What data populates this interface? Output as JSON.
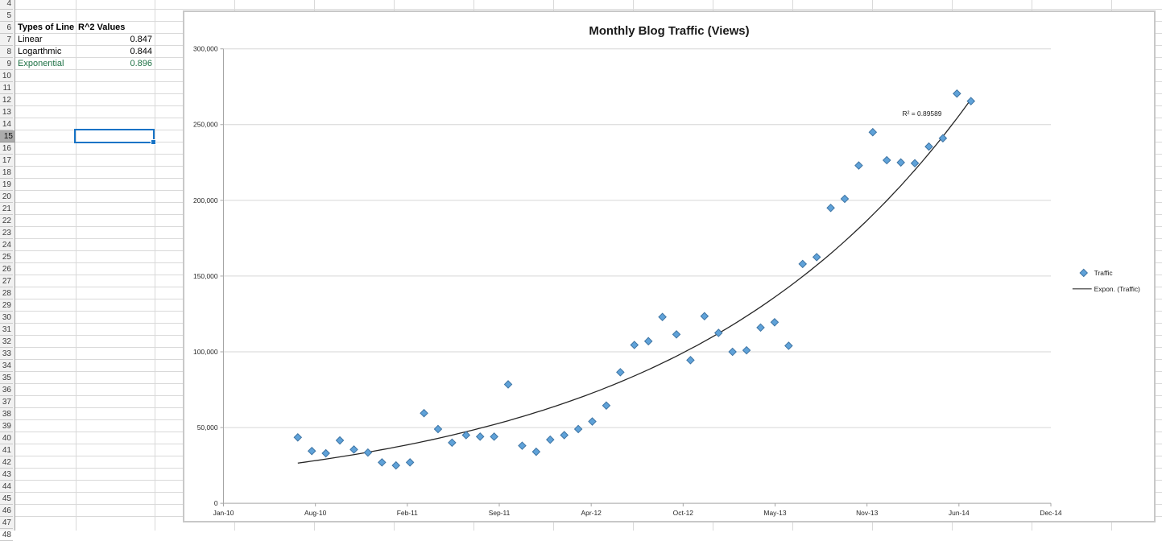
{
  "spreadsheet": {
    "first_visible_row": 4,
    "last_visible_row": 48,
    "selected_row": 15,
    "table": {
      "header": {
        "col1": "Types of Line",
        "col2": "R^2 Values"
      },
      "rows": [
        {
          "label": "Linear",
          "value": "0.847",
          "green": false
        },
        {
          "label": "Logarthmic",
          "value": "0.844",
          "green": false
        },
        {
          "label": "Exponential",
          "value": "0.896",
          "green": true
        }
      ]
    },
    "colors": {
      "green_text": "#1F7246",
      "selection_blue": "#1673C6",
      "row_header_bg": "#F1F1F1",
      "row_header_selected_bg": "#ACACAC",
      "sheet_gridline": "#D9D9D9"
    }
  },
  "chart_data": {
    "type": "scatter",
    "title": "Monthly Blog Traffic (Views)",
    "x": [
      "Jun-10",
      "Jul-10",
      "Aug-10",
      "Sep-10",
      "Oct-10",
      "Nov-10",
      "Dec-10",
      "Jan-11",
      "Feb-11",
      "Mar-11",
      "Apr-11",
      "May-11",
      "Jun-11",
      "Jul-11",
      "Aug-11",
      "Sep-11",
      "Oct-11",
      "Nov-11",
      "Dec-11",
      "Jan-12",
      "Feb-12",
      "Mar-12",
      "Apr-12",
      "May-12",
      "Jun-12",
      "Jul-12",
      "Aug-12",
      "Sep-12",
      "Oct-12",
      "Nov-12",
      "Dec-12",
      "Jan-13",
      "Feb-13",
      "Mar-13",
      "Apr-13",
      "May-13",
      "Jun-13",
      "Jul-13",
      "Aug-13",
      "Sep-13",
      "Oct-13",
      "Nov-13",
      "Dec-13",
      "Jan-14",
      "Feb-14",
      "Mar-14",
      "Apr-14",
      "May-14",
      "Jun-14"
    ],
    "series": [
      {
        "name": "Traffic",
        "values": [
          43500,
          34500,
          33000,
          41500,
          35500,
          33500,
          27000,
          25000,
          27000,
          59500,
          49000,
          40000,
          45000,
          44000,
          44000,
          78500,
          38000,
          34000,
          42000,
          45000,
          49000,
          54000,
          64500,
          86500,
          104500,
          107000,
          123000,
          111500,
          94500,
          123500,
          112500,
          100000,
          101000,
          116000,
          119500,
          104000,
          158000,
          162500,
          195000,
          201000,
          223000,
          245000,
          226500,
          225000,
          224500,
          235500,
          241000,
          270500,
          265500
        ]
      }
    ],
    "trendline": {
      "name": "Expon. (Traffic)",
      "kind": "exponential",
      "r2_label": "R² = 0.89589",
      "fit": {
        "a": 20540,
        "b": 0.0481
      }
    },
    "x_tick_labels": [
      "Jan-10",
      "Aug-10",
      "Feb-11",
      "Sep-11",
      "Apr-12",
      "Oct-12",
      "May-13",
      "Nov-13",
      "Jun-14",
      "Dec-14"
    ],
    "y_ticks": [
      0,
      50000,
      100000,
      150000,
      200000,
      250000,
      300000
    ],
    "ylim": [
      0,
      300000
    ],
    "grid": true,
    "legend_position": "right",
    "marker_color": "#5FA2D9",
    "marker_edge_color": "#3E74A3",
    "trend_color": "#262626"
  }
}
